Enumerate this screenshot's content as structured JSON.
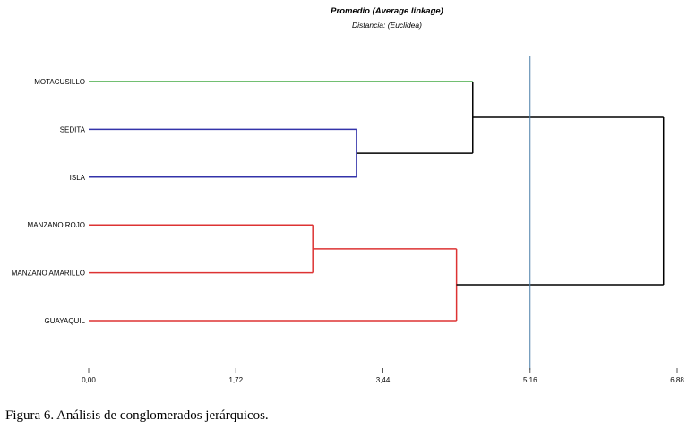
{
  "chart_data": {
    "type": "dendrogram",
    "title": "Promedio (Average linkage)",
    "subtitle": "Distancia: (Euclidea)",
    "leaves": [
      "MOTACUSILLO",
      "SEDITA",
      "ISLA",
      "MANZANO ROJO",
      "MANZANO AMARILLO",
      "GUAYAQUIL"
    ],
    "merges": [
      {
        "id": "c1",
        "children": [
          "SEDITA",
          "ISLA"
        ],
        "height": 3.13,
        "color": "#3333aa"
      },
      {
        "id": "c2",
        "children": [
          "MOTACUSILLO",
          "c1"
        ],
        "height": 4.49,
        "color": "#000000"
      },
      {
        "id": "c3",
        "children": [
          "MANZANO ROJO",
          "MANZANO AMARILLO"
        ],
        "height": 2.62,
        "color": "#dd3333"
      },
      {
        "id": "c4",
        "children": [
          "c3",
          "GUAYAQUIL"
        ],
        "height": 4.3,
        "color": "#dd3333"
      },
      {
        "id": "c5",
        "children": [
          "c2",
          "c4"
        ],
        "height": 6.72,
        "color": "#000000"
      }
    ],
    "leaf_colors": {
      "MOTACUSILLO": "#44aa44",
      "SEDITA": "#3333aa",
      "ISLA": "#3333aa",
      "MANZANO ROJO": "#dd3333",
      "MANZANO AMARILLO": "#dd3333",
      "GUAYAQUIL": "#dd3333"
    },
    "cut_line": 5.16,
    "cut_color": "#4a7fa8",
    "xlim": [
      0,
      6.88
    ],
    "xticks": [
      "0,00",
      "1,72",
      "3,44",
      "5,16",
      "6,88"
    ]
  },
  "caption": "Figura 6. Análisis de conglomerados jerárquicos."
}
